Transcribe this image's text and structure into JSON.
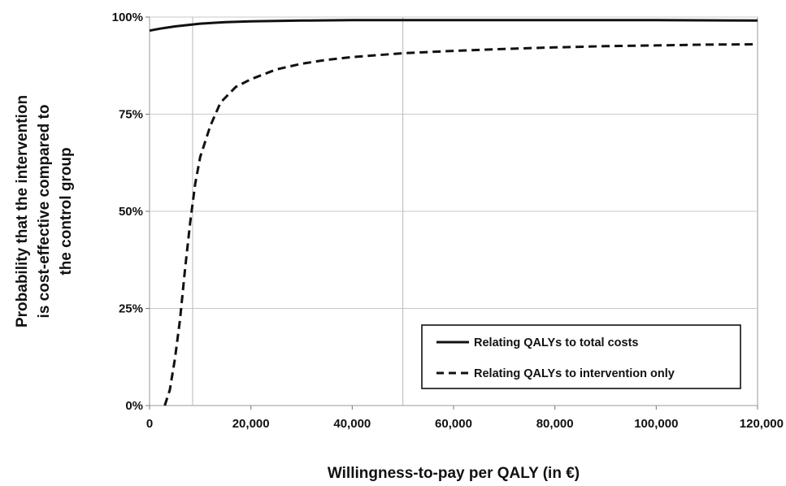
{
  "chart_data": {
    "type": "line",
    "title": "",
    "xlabel": "Willingness-to-pay per QALY (in €)",
    "ylabel_lines": [
      "Probability that the intervention",
      "is cost-effective compared to",
      "the control group"
    ],
    "xlim": [
      0,
      120000
    ],
    "ylim": [
      0,
      100
    ],
    "x_ticks": [
      0,
      20000,
      40000,
      60000,
      80000,
      100000,
      120000
    ],
    "x_tick_labels": [
      "0",
      "20,000",
      "40,000",
      "60,000",
      "80,000",
      "100,000",
      "120,000"
    ],
    "y_ticks": [
      0,
      25,
      50,
      75,
      100
    ],
    "y_tick_labels": [
      "0%",
      "25%",
      "50%",
      "75%",
      "100%"
    ],
    "grid": "horizontal",
    "reference_lines_x": [
      8500,
      50000
    ],
    "legend_position": "bottom-right",
    "series": [
      {
        "name": "Relating QALYs to total costs",
        "style": "solid",
        "color": "#111111",
        "x": [
          0,
          2000,
          5000,
          10000,
          15000,
          20000,
          30000,
          40000,
          50000,
          60000,
          80000,
          100000,
          120000
        ],
        "y": [
          96.5,
          97.0,
          97.6,
          98.3,
          98.7,
          98.9,
          99.1,
          99.2,
          99.2,
          99.2,
          99.2,
          99.2,
          99.1
        ]
      },
      {
        "name": "Relating QALYs to intervention only",
        "style": "dashed",
        "color": "#111111",
        "x": [
          3000,
          4000,
          5000,
          6000,
          7000,
          8000,
          9000,
          10000,
          12000,
          14000,
          17000,
          20000,
          25000,
          30000,
          35000,
          40000,
          50000,
          60000,
          70000,
          80000,
          90000,
          100000,
          110000,
          120000
        ],
        "y": [
          0,
          4,
          12,
          22,
          35,
          47,
          57,
          64,
          72,
          78,
          82,
          84,
          86.5,
          88,
          89,
          89.7,
          90.7,
          91.3,
          91.8,
          92.2,
          92.5,
          92.7,
          92.9,
          93.0
        ]
      }
    ]
  }
}
